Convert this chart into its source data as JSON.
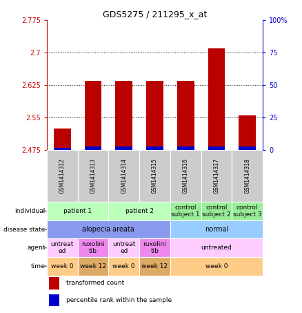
{
  "title": "GDS5275 / 211295_x_at",
  "samples": [
    "GSM1414312",
    "GSM1414313",
    "GSM1414314",
    "GSM1414315",
    "GSM1414316",
    "GSM1414317",
    "GSM1414318"
  ],
  "red_values": [
    2.525,
    2.635,
    2.635,
    2.635,
    2.635,
    2.71,
    2.555
  ],
  "blue_heights": [
    0.006,
    0.008,
    0.008,
    0.008,
    0.008,
    0.008,
    0.008
  ],
  "y_min": 2.475,
  "y_max": 2.775,
  "y_ticks": [
    2.475,
    2.55,
    2.625,
    2.7,
    2.775
  ],
  "y_ticks_right": [
    0,
    25,
    50,
    75,
    100
  ],
  "individual_rows": [
    [
      "patient 1",
      0,
      1,
      "#bbffbb"
    ],
    [
      "patient 2",
      2,
      3,
      "#bbffbb"
    ],
    [
      "control\nsubject 1",
      4,
      4,
      "#99ee99"
    ],
    [
      "control\nsubject 2",
      5,
      5,
      "#99ee99"
    ],
    [
      "control\nsubject 3",
      6,
      6,
      "#99ee99"
    ]
  ],
  "disease_rows": [
    [
      "alopecia areata",
      0,
      3,
      "#8899ee"
    ],
    [
      "normal",
      4,
      6,
      "#99ccff"
    ]
  ],
  "agent_rows": [
    [
      "untreat\ned",
      0,
      0,
      "#ffccff"
    ],
    [
      "ruxolini\ntib",
      1,
      1,
      "#ee88ee"
    ],
    [
      "untreat\ned",
      2,
      2,
      "#ffccff"
    ],
    [
      "ruxolini\ntib",
      3,
      3,
      "#ee88ee"
    ],
    [
      "untreated",
      4,
      6,
      "#ffccff"
    ]
  ],
  "time_rows": [
    [
      "week 0",
      0,
      0,
      "#ffcc88"
    ],
    [
      "week 12",
      1,
      1,
      "#ddaa66"
    ],
    [
      "week 0",
      2,
      2,
      "#ffcc88"
    ],
    [
      "week 12",
      3,
      3,
      "#ddaa66"
    ],
    [
      "week 0",
      4,
      6,
      "#ffcc88"
    ]
  ],
  "row_labels": [
    "individual",
    "disease state",
    "agent",
    "time"
  ],
  "legend_red": "transformed count",
  "legend_blue": "percentile rank within the sample",
  "bar_width": 0.55,
  "bg_color": "#ffffff",
  "axis_color_left": "#cc0000",
  "axis_color_right": "#0000cc",
  "sample_bg": "#cccccc"
}
